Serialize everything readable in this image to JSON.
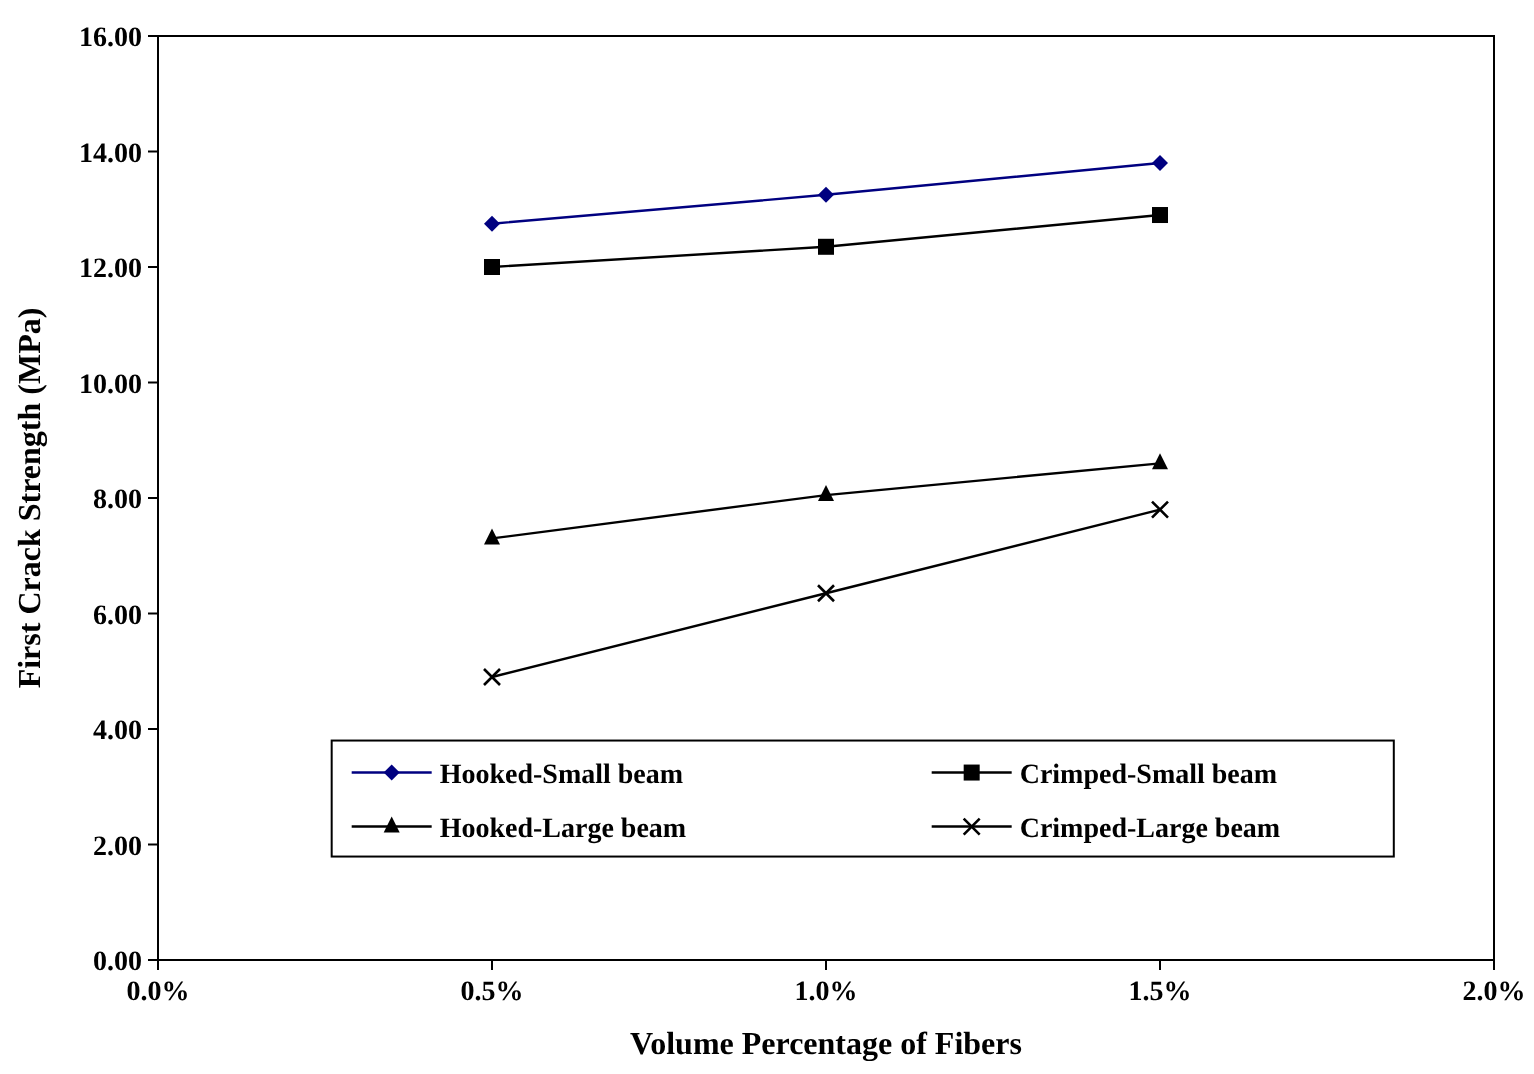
{
  "chart_data": {
    "type": "line",
    "xlabel": "Volume Percentage of Fibers",
    "ylabel": "First Crack Strength (MPa)",
    "x": [
      0.5,
      1.0,
      1.5
    ],
    "series": [
      {
        "name": "Hooked-Small beam",
        "color": "#000080",
        "marker": "diamond",
        "values": [
          12.75,
          13.25,
          13.8
        ]
      },
      {
        "name": "Crimped-Small beam",
        "color": "#000000",
        "marker": "square",
        "values": [
          12.0,
          12.35,
          12.9
        ]
      },
      {
        "name": "Hooked-Large beam",
        "color": "#000000",
        "marker": "triangle",
        "values": [
          7.3,
          8.05,
          8.6
        ]
      },
      {
        "name": "Crimped-Large beam",
        "color": "#000000",
        "marker": "cross",
        "values": [
          4.9,
          6.35,
          7.8
        ]
      }
    ],
    "xlim": [
      0,
      2
    ],
    "xticks": [
      {
        "value": 0,
        "label": "0.0%"
      },
      {
        "value": 0.5,
        "label": "0.5%"
      },
      {
        "value": 1.0,
        "label": "1.0%"
      },
      {
        "value": 1.5,
        "label": "1.5%"
      },
      {
        "value": 2.0,
        "label": "2.0%"
      }
    ],
    "ylim": [
      0,
      16
    ],
    "yticks": [
      {
        "value": 0,
        "label": "0.00"
      },
      {
        "value": 2,
        "label": "2.00"
      },
      {
        "value": 4,
        "label": "4.00"
      },
      {
        "value": 6,
        "label": "6.00"
      },
      {
        "value": 8,
        "label": "8.00"
      },
      {
        "value": 10,
        "label": "10.00"
      },
      {
        "value": 12,
        "label": "12.00"
      },
      {
        "value": 14,
        "label": "14.00"
      },
      {
        "value": 16,
        "label": "16.00"
      }
    ],
    "grid": false,
    "legend": "bottom",
    "line_style": "solid"
  }
}
